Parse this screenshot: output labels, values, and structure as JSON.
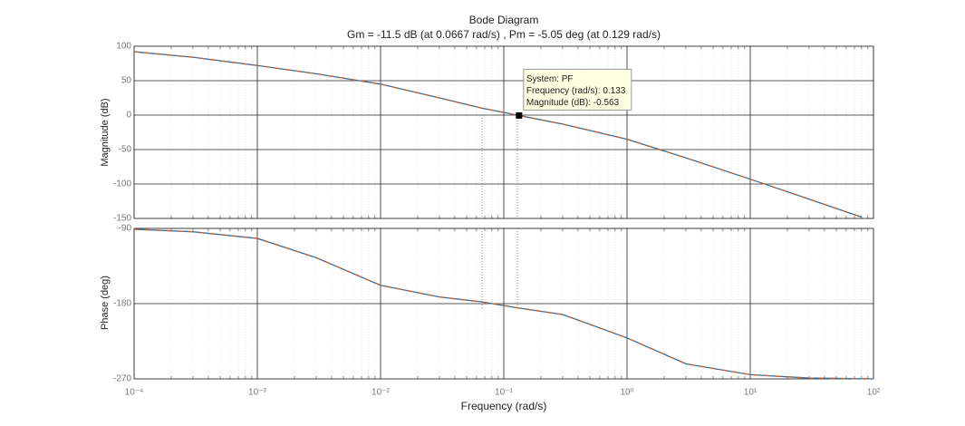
{
  "chart_data": [
    {
      "type": "line",
      "title": "Bode Diagram",
      "subtitle": "Gm = -11.5 dB (at 0.0667 rad/s) ,  Pm = -5.05 deg (at 0.129 rad/s)",
      "y_label": "Magnitude (dB)",
      "log_x": true,
      "grid": true,
      "xlim": [
        0.0001,
        100
      ],
      "ylim": [
        -150,
        100
      ],
      "yticks": [
        100,
        50,
        0,
        -50,
        -100,
        -150
      ],
      "x": [
        0.0001,
        0.0003,
        0.001,
        0.003,
        0.01,
        0.03,
        0.0667,
        0.133,
        0.3,
        1,
        3,
        10,
        30,
        80
      ],
      "series": [
        {
          "color": "#2f6fa7",
          "values": [
            92,
            84,
            72,
            60,
            45,
            25,
            10,
            -0.563,
            -13,
            -35,
            -62,
            -93,
            -122,
            -148
          ]
        },
        {
          "color": "#c4602c",
          "values": [
            92,
            84,
            72,
            60,
            45,
            25,
            10,
            -0.563,
            -13,
            -35,
            -62,
            -93,
            -122,
            -148
          ]
        }
      ],
      "margin_lines": [
        0.0667,
        0.129
      ],
      "datatip": {
        "lines": [
          "System: PF",
          "Frequency (rad/s): 0.133",
          "Magnitude (dB): -0.563"
        ],
        "x": 0.133,
        "y": -0.563
      }
    },
    {
      "type": "line",
      "y_label": "Phase (deg)",
      "x_label": "Frequency  (rad/s)",
      "log_x": true,
      "grid": true,
      "xlim": [
        0.0001,
        100
      ],
      "ylim": [
        -270,
        -90
      ],
      "yticks": [
        -90,
        -180,
        -270
      ],
      "xticks": [
        {
          "value": 0.0001,
          "label": "10⁻⁴"
        },
        {
          "value": 0.001,
          "label": "10⁻³"
        },
        {
          "value": 0.01,
          "label": "10⁻²"
        },
        {
          "value": 0.1,
          "label": "10⁻¹"
        },
        {
          "value": 1,
          "label": "10⁰"
        },
        {
          "value": 10,
          "label": "10¹"
        },
        {
          "value": 100,
          "label": "10²"
        }
      ],
      "x": [
        0.0001,
        0.0003,
        0.001,
        0.003,
        0.01,
        0.03,
        0.0667,
        0.129,
        0.3,
        1,
        3,
        10,
        30,
        100
      ],
      "series": [
        {
          "color": "#2f6fa7",
          "values": [
            -91,
            -94,
            -102,
            -125,
            -158,
            -172,
            -178,
            -185.05,
            -193,
            -221,
            -252,
            -265,
            -269,
            -270
          ]
        },
        {
          "color": "#c4602c",
          "values": [
            -91,
            -94,
            -102,
            -125,
            -158,
            -172,
            -178,
            -185.05,
            -193,
            -221,
            -252,
            -265,
            -269,
            -270
          ]
        }
      ],
      "margin_lines": [
        0.0667,
        0.129
      ]
    }
  ]
}
